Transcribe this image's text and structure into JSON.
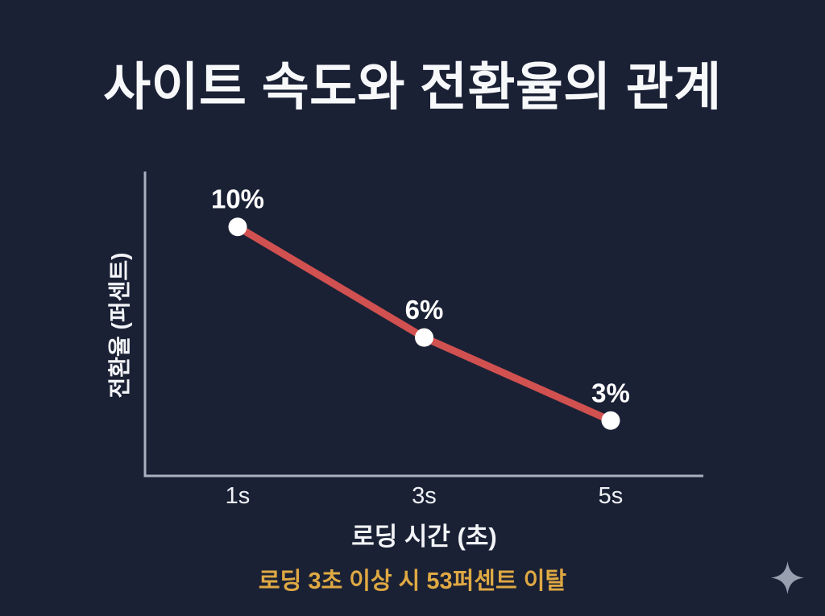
{
  "title": "사이트 속도와 전환율의 관계",
  "chart_data": {
    "type": "line",
    "x": [
      "1s",
      "3s",
      "5s"
    ],
    "values": [
      10,
      6,
      3
    ],
    "point_labels": [
      "10%",
      "6%",
      "3%"
    ],
    "xlabel": "로딩 시간 (초)",
    "ylabel": "전환율 (퍼센트)",
    "ylim": [
      1,
      12
    ],
    "grid": false,
    "legend": "none",
    "line_color": "#d05150",
    "point_color": "#ffffff",
    "axis_color": "#a8b0bf",
    "label_color": "#ffffff"
  },
  "caption": {
    "text": "로딩 3초 이상 시 53퍼센트 이탈",
    "color": "#dfa943"
  },
  "icons": {
    "bottom_right": "sparkle-icon",
    "sparkle_color": "#98a0b0"
  },
  "colors": {
    "background": "#1b2135",
    "text": "#f7f8fa"
  }
}
